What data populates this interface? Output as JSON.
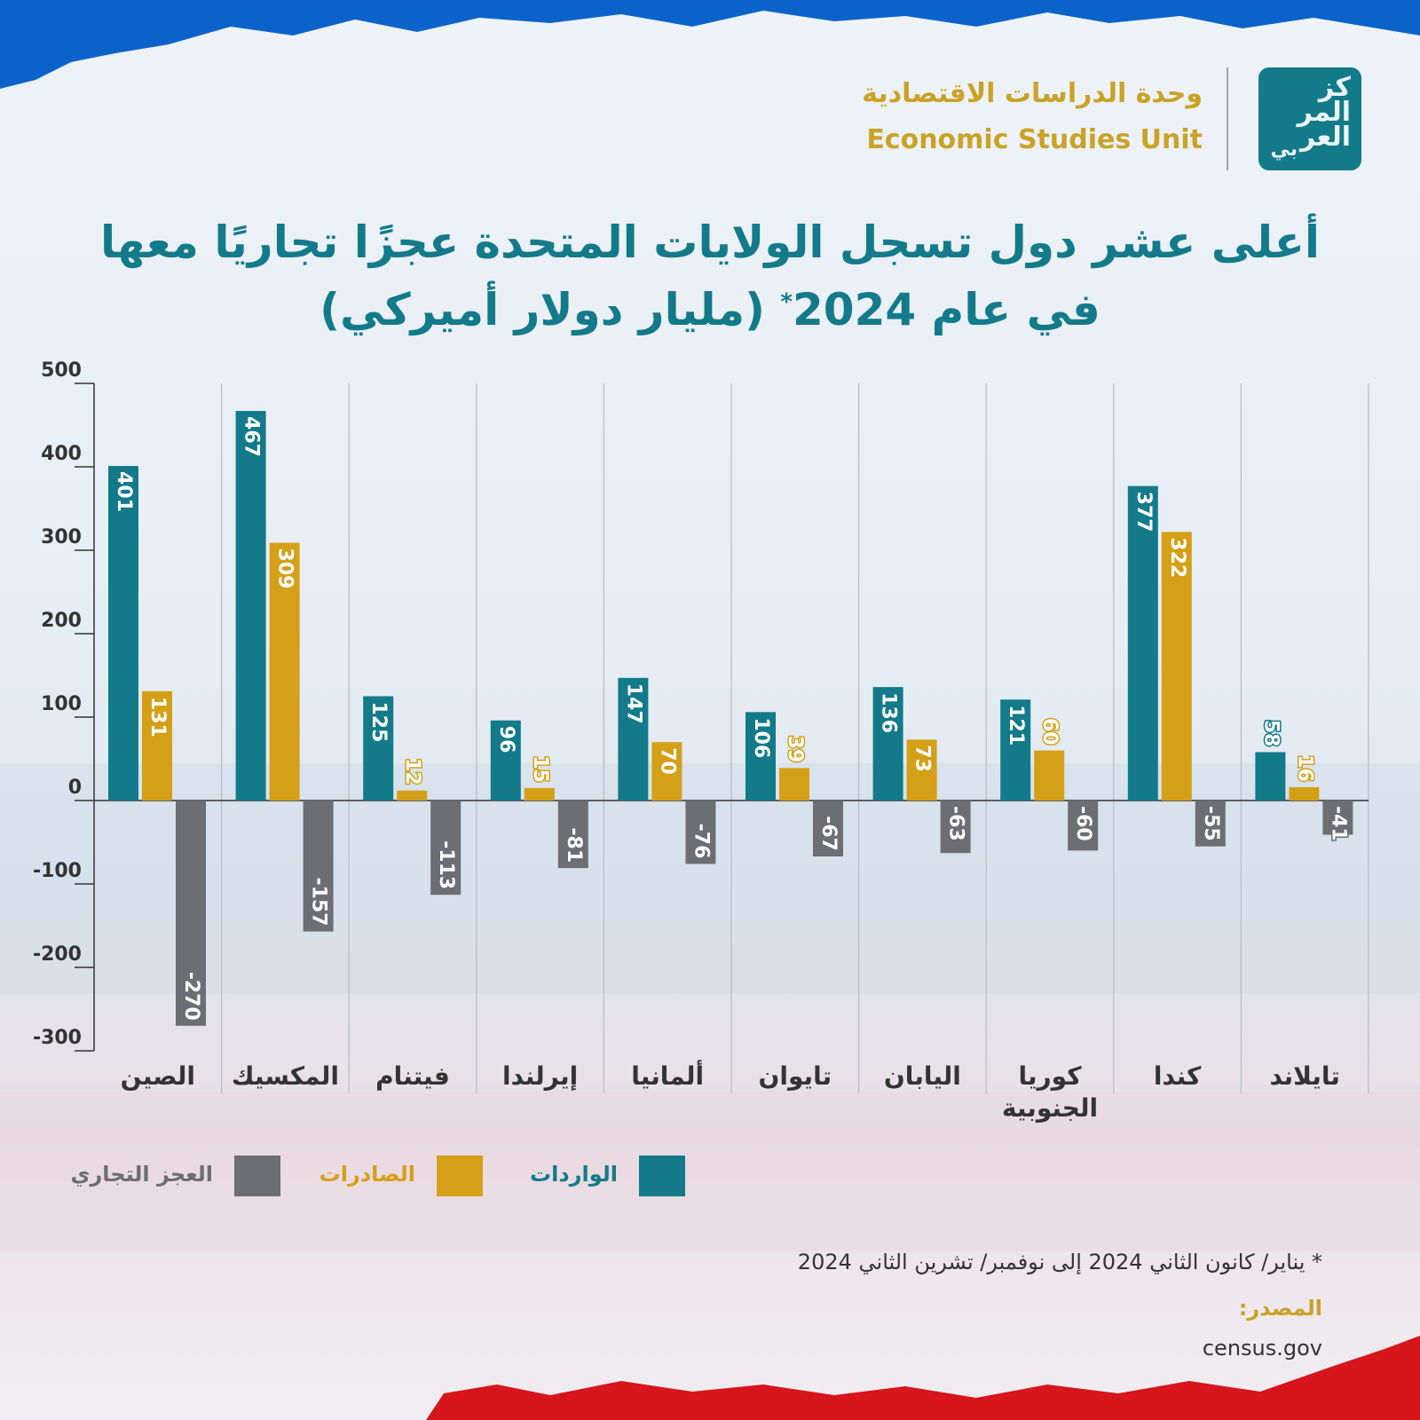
{
  "header": {
    "unit_ar": "وحدة الدراسات الاقتصادية",
    "unit_en": "Economic Studies Unit",
    "logo_text": [
      "كز",
      "المر",
      "العر",
      "بي"
    ]
  },
  "title_line1": "أعلى عشر دول تسجل الولايات المتحدة عجزًا تجاريًا معها",
  "title_line2": "في عام 2024",
  "title_star": "*",
  "title_unit": "(مليار دولار أميركي)",
  "colors": {
    "imports": "#137a8a",
    "exports": "#d4a017",
    "deficit": "#6b6e72"
  },
  "chart_data": {
    "type": "bar",
    "categories": [
      "الصين",
      "المكسيك",
      "فيتنام",
      "إيرلندا",
      "ألمانيا",
      "تايوان",
      "اليابان",
      "كوريا الجنوبية",
      "كندا",
      "تايلاند"
    ],
    "category_lines": [
      [
        "الصين"
      ],
      [
        "المكسيك"
      ],
      [
        "فيتنام"
      ],
      [
        "إيرلندا"
      ],
      [
        "ألمانيا"
      ],
      [
        "تايوان"
      ],
      [
        "اليابان"
      ],
      [
        "كوريا",
        "الجنوبية"
      ],
      [
        "كندا"
      ],
      [
        "تايلاند"
      ]
    ],
    "series": [
      {
        "name": "الواردات",
        "values": [
          401,
          467,
          125,
          96,
          147,
          106,
          136,
          121,
          377,
          58
        ]
      },
      {
        "name": "الصادرات",
        "values": [
          131,
          309,
          12,
          15,
          70,
          39,
          73,
          60,
          322,
          16
        ]
      },
      {
        "name": "العجز التجاري",
        "values": [
          -270,
          -157,
          -113,
          -81,
          -76,
          -67,
          -63,
          -60,
          -55,
          -41
        ]
      }
    ],
    "ylim": [
      -300,
      500
    ],
    "yticks": [
      500,
      400,
      300,
      200,
      100,
      0,
      -100,
      -200,
      -300
    ],
    "legend_position": "bottom"
  },
  "footnote": "*  يناير/ كانون الثاني 2024 إلى نوفمبر/ تشرين الثاني 2024",
  "source_label": "المصدر:",
  "source_value": "census.gov"
}
